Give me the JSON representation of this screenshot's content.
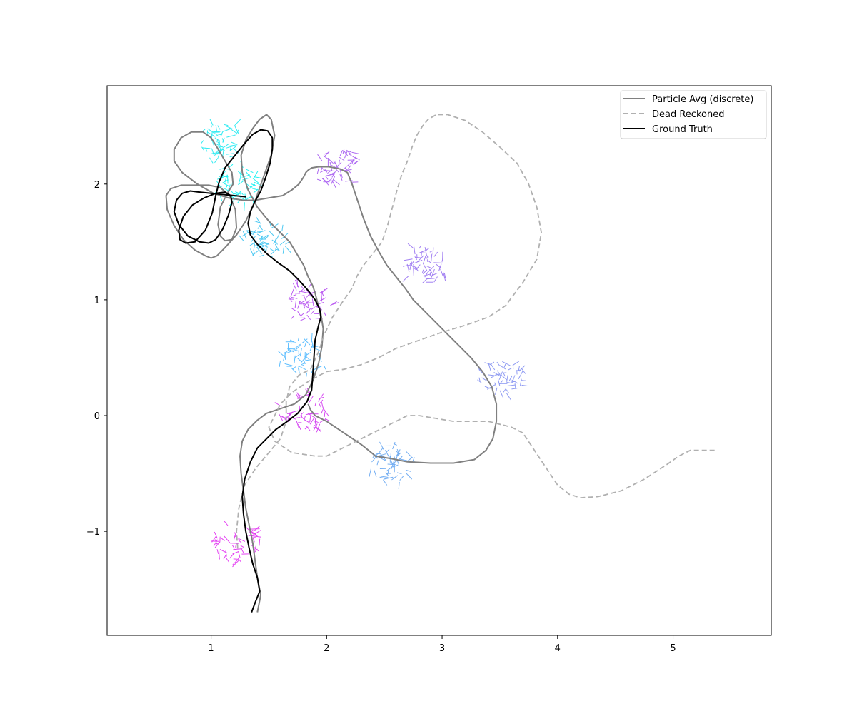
{
  "chart_data": {
    "type": "line",
    "title": "",
    "xlabel": "",
    "ylabel": "",
    "xlim": [
      0.1,
      5.85
    ],
    "ylim": [
      -1.9,
      2.85
    ],
    "x_ticks": [
      1,
      2,
      3,
      4,
      5
    ],
    "y_ticks": [
      -1,
      0,
      1,
      2
    ],
    "x_tick_labels": [
      "1",
      "2",
      "3",
      "4",
      "5"
    ],
    "y_tick_labels": [
      "−1",
      "0",
      "1",
      "2"
    ],
    "legend_position": "top-right",
    "grid": false,
    "series": [
      {
        "name": "Particle Avg (discrete)",
        "color": "#808080",
        "style": "solid",
        "x": [
          1.4,
          1.43,
          1.4,
          1.38,
          1.36,
          1.33,
          1.3,
          1.28,
          1.26,
          1.25,
          1.27,
          1.32,
          1.4,
          1.48,
          1.6,
          1.72,
          1.82,
          1.88,
          1.93,
          1.96,
          1.97,
          1.95,
          1.92,
          1.9,
          1.88,
          1.84,
          1.8,
          1.74,
          1.68,
          1.6,
          1.5,
          1.4,
          1.32,
          1.27,
          1.26,
          1.3,
          1.36,
          1.42,
          1.48,
          1.52,
          1.55,
          1.52,
          1.45,
          1.38,
          1.3,
          1.22,
          1.12,
          1.05,
          1.0,
          0.95,
          0.86,
          0.76,
          0.68,
          0.62,
          0.61,
          0.65,
          0.74,
          0.86,
          0.98,
          1.08,
          1.16,
          1.21,
          1.22,
          1.18,
          1.12,
          1.08,
          1.06,
          1.08,
          1.14,
          1.19,
          1.18,
          1.12,
          1.05,
          1.0,
          0.93,
          0.83,
          0.74,
          0.68,
          0.68,
          0.75,
          0.88,
          1.02,
          1.15,
          1.28,
          1.38,
          1.5,
          1.62,
          1.7,
          1.76,
          1.8,
          1.82,
          1.84,
          1.87,
          1.93,
          2.02,
          2.12,
          2.18,
          2.22,
          2.27,
          2.32,
          2.38,
          2.45,
          2.52,
          2.6,
          2.68,
          2.75,
          2.85,
          2.95,
          3.05,
          3.15,
          3.25,
          3.35,
          3.43,
          3.47,
          3.47,
          3.44,
          3.38,
          3.28,
          3.1,
          2.9,
          2.7,
          2.55,
          2.42,
          2.4,
          2.3,
          2.15,
          2.0,
          1.9,
          1.86,
          1.84
        ],
        "y": [
          -1.7,
          -1.55,
          -1.4,
          -1.25,
          -1.1,
          -0.95,
          -0.8,
          -0.65,
          -0.5,
          -0.35,
          -0.22,
          -0.12,
          -0.04,
          0.02,
          0.06,
          0.1,
          0.18,
          0.3,
          0.45,
          0.6,
          0.75,
          0.88,
          0.98,
          1.06,
          1.12,
          1.2,
          1.3,
          1.4,
          1.5,
          1.58,
          1.68,
          1.8,
          1.95,
          2.1,
          2.25,
          2.38,
          2.48,
          2.56,
          2.6,
          2.56,
          2.42,
          2.25,
          2.05,
          1.85,
          1.68,
          1.56,
          1.45,
          1.38,
          1.36,
          1.38,
          1.43,
          1.52,
          1.64,
          1.78,
          1.9,
          1.96,
          1.99,
          1.99,
          1.99,
          1.97,
          1.9,
          1.78,
          1.62,
          1.52,
          1.51,
          1.55,
          1.65,
          1.8,
          1.92,
          2.0,
          2.1,
          2.2,
          2.32,
          2.4,
          2.45,
          2.45,
          2.4,
          2.3,
          2.2,
          2.1,
          2.0,
          1.92,
          1.88,
          1.86,
          1.86,
          1.88,
          1.9,
          1.95,
          2.0,
          2.06,
          2.1,
          2.12,
          2.14,
          2.15,
          2.15,
          2.13,
          2.1,
          2.0,
          1.85,
          1.7,
          1.55,
          1.42,
          1.3,
          1.2,
          1.1,
          1.0,
          0.9,
          0.8,
          0.7,
          0.6,
          0.5,
          0.38,
          0.25,
          0.1,
          -0.05,
          -0.2,
          -0.3,
          -0.38,
          -0.41,
          -0.41,
          -0.4,
          -0.37,
          -0.35,
          -0.33,
          -0.25,
          -0.15,
          -0.05,
          0.0,
          0.05,
          0.1
        ]
      },
      {
        "name": "Dead Reckoned",
        "color": "#b0b0b0",
        "style": "dashed",
        "x": [
          1.23,
          1.22,
          1.24,
          1.29,
          1.39,
          1.5,
          1.6,
          1.65,
          1.65,
          1.68,
          1.76,
          1.86,
          1.93,
          1.98,
          2.05,
          2.15,
          2.22,
          2.26,
          2.32,
          2.4,
          2.48,
          2.53,
          2.57,
          2.61,
          2.65,
          2.7,
          2.74,
          2.78,
          2.83,
          2.88,
          2.95,
          3.05,
          3.2,
          3.35,
          3.5,
          3.65,
          3.75,
          3.82,
          3.86,
          3.82,
          3.7,
          3.55,
          3.4,
          3.2,
          3.0,
          2.8,
          2.6,
          2.45,
          2.3,
          2.15,
          2.0,
          1.85,
          1.7,
          1.6,
          1.55,
          1.5,
          1.55,
          1.7,
          1.9,
          2.0,
          2.5,
          2.7,
          2.75,
          2.8,
          3.1,
          3.4,
          3.6,
          3.7,
          3.8,
          3.9,
          4.0,
          4.1,
          4.2,
          4.35,
          4.55,
          4.75,
          4.95,
          5.05,
          5.15,
          5.25,
          5.36
        ],
        "y": [
          -1.15,
          -1.0,
          -0.8,
          -0.6,
          -0.45,
          -0.32,
          -0.2,
          -0.05,
          0.12,
          0.25,
          0.35,
          0.4,
          0.55,
          0.7,
          0.85,
          1.0,
          1.1,
          1.2,
          1.3,
          1.4,
          1.5,
          1.65,
          1.8,
          1.95,
          2.08,
          2.2,
          2.32,
          2.42,
          2.5,
          2.56,
          2.6,
          2.6,
          2.55,
          2.45,
          2.32,
          2.18,
          2.0,
          1.8,
          1.58,
          1.35,
          1.15,
          0.95,
          0.85,
          0.78,
          0.72,
          0.65,
          0.58,
          0.5,
          0.44,
          0.4,
          0.38,
          0.3,
          0.2,
          0.1,
          0.0,
          -0.1,
          -0.22,
          -0.32,
          -0.35,
          -0.35,
          -0.1,
          0.0,
          0.0,
          0.0,
          -0.05,
          -0.05,
          -0.1,
          -0.15,
          -0.3,
          -0.45,
          -0.6,
          -0.68,
          -0.71,
          -0.7,
          -0.65,
          -0.55,
          -0.42,
          -0.35,
          -0.3,
          -0.3,
          -0.3
        ]
      },
      {
        "name": "Ground Truth",
        "color": "#000000",
        "style": "solid",
        "x": [
          1.35,
          1.38,
          1.42,
          1.4,
          1.36,
          1.33,
          1.3,
          1.28,
          1.27,
          1.29,
          1.34,
          1.4,
          1.48,
          1.56,
          1.66,
          1.75,
          1.83,
          1.87,
          1.88,
          1.89,
          1.9,
          1.93,
          1.95,
          1.94,
          1.9,
          1.84,
          1.76,
          1.68,
          1.58,
          1.48,
          1.4,
          1.34,
          1.32,
          1.34,
          1.38,
          1.43,
          1.47,
          1.51,
          1.53,
          1.53,
          1.49,
          1.43,
          1.36,
          1.28,
          1.2,
          1.12,
          1.07,
          1.04,
          1.01,
          0.95,
          0.86,
          0.78,
          0.73,
          0.72,
          0.76,
          0.84,
          0.94,
          1.04,
          1.12,
          1.17,
          1.18,
          1.15,
          1.1,
          1.04,
          0.98,
          0.9,
          0.8,
          0.72,
          0.68,
          0.7,
          0.75,
          0.82,
          0.9,
          1.0,
          1.1,
          1.2,
          1.3
        ],
        "y": [
          -1.7,
          -1.62,
          -1.52,
          -1.4,
          -1.28,
          -1.15,
          -1.0,
          -0.85,
          -0.7,
          -0.55,
          -0.4,
          -0.28,
          -0.2,
          -0.12,
          -0.05,
          0.02,
          0.12,
          0.22,
          0.35,
          0.5,
          0.65,
          0.78,
          0.85,
          0.92,
          1.0,
          1.08,
          1.17,
          1.25,
          1.32,
          1.4,
          1.48,
          1.56,
          1.66,
          1.76,
          1.85,
          1.94,
          2.05,
          2.18,
          2.3,
          2.4,
          2.46,
          2.47,
          2.43,
          2.34,
          2.24,
          2.14,
          2.02,
          1.9,
          1.75,
          1.6,
          1.5,
          1.49,
          1.52,
          1.6,
          1.72,
          1.82,
          1.88,
          1.92,
          1.93,
          1.9,
          1.84,
          1.73,
          1.61,
          1.52,
          1.49,
          1.5,
          1.55,
          1.65,
          1.76,
          1.86,
          1.92,
          1.94,
          1.93,
          1.92,
          1.91,
          1.9,
          1.89
        ]
      }
    ],
    "particle_clusters": [
      {
        "x": 1.22,
        "y": -1.1,
        "color": "#e020f0"
      },
      {
        "x": 1.8,
        "y": 0.03,
        "color": "#d02cf0"
      },
      {
        "x": 1.8,
        "y": 0.5,
        "color": "#44b4ff"
      },
      {
        "x": 1.85,
        "y": 0.97,
        "color": "#b040f0"
      },
      {
        "x": 1.45,
        "y": 1.5,
        "color": "#30c0f0"
      },
      {
        "x": 1.23,
        "y": 2.0,
        "color": "#00f0f0"
      },
      {
        "x": 1.09,
        "y": 2.37,
        "color": "#10e8f0"
      },
      {
        "x": 2.1,
        "y": 2.14,
        "color": "#a050f0"
      },
      {
        "x": 2.86,
        "y": 1.3,
        "color": "#9068f0"
      },
      {
        "x": 3.52,
        "y": 0.35,
        "color": "#7c8af0"
      },
      {
        "x": 2.58,
        "y": -0.42,
        "color": "#5ca0f0"
      }
    ]
  }
}
